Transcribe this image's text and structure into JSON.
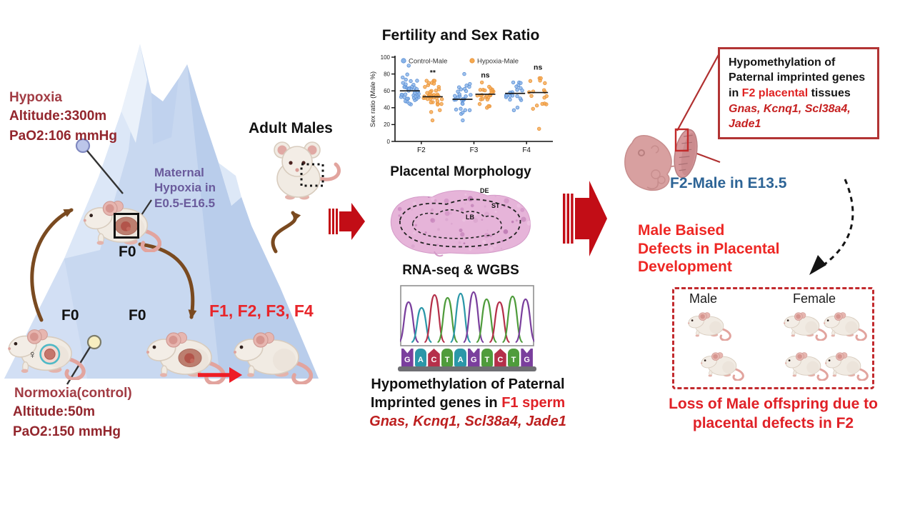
{
  "left": {
    "hypoxia_title": "Hypoxia",
    "hypoxia_lines": "Altitude:3300m\nPaO2:106 mmHg",
    "maternal_label": "Maternal\nHypoxia in\nE0.5-E16.5",
    "f0_a": "F0",
    "f0_b": "F0",
    "f0_c": "F0",
    "female_symbol": "♀",
    "normoxia_title": "Normoxia(control)",
    "normoxia_lines": "Altitude:50m\nPaO2:150 mmHg",
    "generations_label": "F1, F2, F3, F4",
    "adult_males_label": "Adult Males"
  },
  "middle": {
    "placental_title": "Placental Morphology",
    "histology": {
      "de": "DE",
      "st": "ST",
      "lb": "LB"
    },
    "rnaseq_title": "RNA-seq & WGBS",
    "hypo_line1": "Hypomethylation of Paternal",
    "hypo_line2_black": "Imprinted genes in ",
    "hypo_line2_red": "F1 sperm",
    "hypo_genes": "Gnas, Kcnq1, Scl38a4, Jade1"
  },
  "right": {
    "box_black1": "Hypomethylation of Paternal imprinted genes in ",
    "box_red1": "F2 placental",
    "box_black2": " tissues",
    "box_genes": "Gnas, Kcnq1, Scl38a4, Jade1",
    "f2_male_label": "F2-Male in E13.5",
    "male_biased_label": "Male Baised\nDefects in Placental\nDevelopment",
    "male_label": "Male",
    "female_label": "Female",
    "loss_label": "Loss of Male offspring due to\nplacental defects in F2"
  },
  "chart_data": {
    "type": "scatter",
    "title": "Fertility and Sex Ratio",
    "xlabel": "",
    "ylabel": "Sex ratio (Male %)",
    "ylim": [
      0,
      100
    ],
    "yticks": [
      0,
      20,
      40,
      60,
      80,
      100
    ],
    "categories": [
      "F2",
      "F3",
      "F4"
    ],
    "legend_position": "top",
    "grid": false,
    "series": [
      {
        "name": "Control-Male",
        "fill": "#8ab4e8",
        "stroke": "#5b8fd4",
        "clusters": [
          {
            "median": 60,
            "low": 44,
            "high": 90,
            "n": 44
          },
          {
            "median": 50,
            "low": 25,
            "high": 80,
            "n": 30
          },
          {
            "median": 57,
            "low": 37,
            "high": 70,
            "n": 22
          }
        ]
      },
      {
        "name": "Hypoxia-Male",
        "fill": "#f5a94f",
        "stroke": "#e8923a",
        "clusters": [
          {
            "median": 53,
            "low": 25,
            "high": 72,
            "n": 40
          },
          {
            "median": 56,
            "low": 40,
            "high": 70,
            "n": 26
          },
          {
            "median": 58,
            "low": 15,
            "high": 75,
            "n": 18
          }
        ]
      }
    ],
    "annotations": [
      {
        "category": "F2",
        "text": "**",
        "y": 79
      },
      {
        "category": "F3",
        "text": "ns",
        "y": 76
      },
      {
        "category": "F4",
        "text": "ns",
        "y": 85
      }
    ]
  },
  "sequence": {
    "bases": [
      {
        "letter": "G",
        "color": "#7a3f9d"
      },
      {
        "letter": "A",
        "color": "#2b97a8"
      },
      {
        "letter": "C",
        "color": "#b5304a"
      },
      {
        "letter": "T",
        "color": "#4f9c3c"
      },
      {
        "letter": "A",
        "color": "#2b97a8"
      },
      {
        "letter": "G",
        "color": "#7a3f9d"
      },
      {
        "letter": "T",
        "color": "#4f9c3c"
      },
      {
        "letter": "C",
        "color": "#b5304a"
      },
      {
        "letter": "T",
        "color": "#4f9c3c"
      },
      {
        "letter": "G",
        "color": "#7a3f9d"
      }
    ],
    "peak_heights": [
      56,
      48,
      66,
      62,
      68,
      70,
      60,
      56,
      64,
      60
    ]
  },
  "colors": {
    "dark_red_text": "#93262d",
    "red_text": "#e8252a",
    "purple_text": "#6a5b9c",
    "blue_text": "#2d6496",
    "arrow_red": "#c20d16",
    "brown_arrow": "#7a4a20",
    "mountain_blue": "#c8d8f0"
  }
}
